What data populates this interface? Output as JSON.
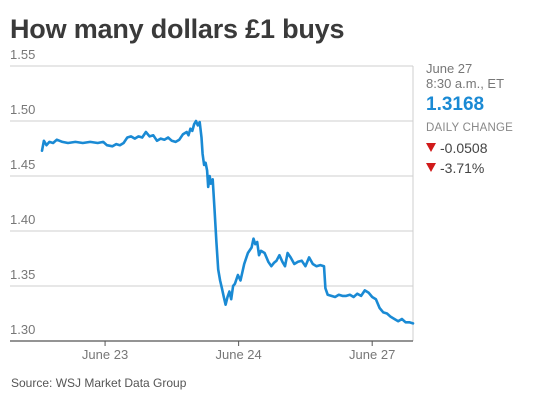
{
  "title": "How many dollars £1 buys",
  "source": "Source: WSJ Market Data Group",
  "panel": {
    "date": "June 27",
    "time": "8:30 a.m., ET",
    "value": "1.3168",
    "label": "DAILY CHANGE",
    "change": "-0.0508",
    "change_pct": "-3.71%"
  },
  "colors": {
    "line": "#1a8ad4",
    "down": "#d01a1a",
    "grid": "#cfcfcf"
  },
  "chart_data": {
    "type": "line",
    "title": "How many dollars £1 buys",
    "xlabel": "",
    "ylabel": "",
    "ylim": [
      1.3,
      1.55
    ],
    "y_ticks": [
      "1.55",
      "1.50",
      "1.45",
      "1.40",
      "1.35",
      "1.30"
    ],
    "x_ticks": [
      {
        "label": "June 23",
        "x": 0.17
      },
      {
        "label": "June 24",
        "x": 0.53
      },
      {
        "label": "June 27",
        "x": 0.89
      }
    ],
    "xlim": [
      0,
      1
    ],
    "grid": true,
    "series": [
      {
        "values": [
          [
            0.0,
            1.473
          ],
          [
            0.005,
            1.482
          ],
          [
            0.012,
            1.478
          ],
          [
            0.02,
            1.481
          ],
          [
            0.03,
            1.48
          ],
          [
            0.04,
            1.483
          ],
          [
            0.055,
            1.481
          ],
          [
            0.07,
            1.48
          ],
          [
            0.09,
            1.481
          ],
          [
            0.11,
            1.48
          ],
          [
            0.13,
            1.481
          ],
          [
            0.15,
            1.48
          ],
          [
            0.165,
            1.481
          ],
          [
            0.175,
            1.478
          ],
          [
            0.19,
            1.477
          ],
          [
            0.2,
            1.479
          ],
          [
            0.21,
            1.478
          ],
          [
            0.22,
            1.48
          ],
          [
            0.23,
            1.485
          ],
          [
            0.24,
            1.486
          ],
          [
            0.25,
            1.484
          ],
          [
            0.26,
            1.486
          ],
          [
            0.27,
            1.485
          ],
          [
            0.28,
            1.49
          ],
          [
            0.29,
            1.486
          ],
          [
            0.3,
            1.487
          ],
          [
            0.31,
            1.482
          ],
          [
            0.32,
            1.484
          ],
          [
            0.33,
            1.483
          ],
          [
            0.34,
            1.485
          ],
          [
            0.35,
            1.482
          ],
          [
            0.36,
            1.481
          ],
          [
            0.37,
            1.483
          ],
          [
            0.38,
            1.488
          ],
          [
            0.39,
            1.49
          ],
          [
            0.395,
            1.487
          ],
          [
            0.4,
            1.493
          ],
          [
            0.405,
            1.491
          ],
          [
            0.41,
            1.497
          ],
          [
            0.415,
            1.5
          ],
          [
            0.42,
            1.496
          ],
          [
            0.425,
            1.499
          ],
          [
            0.43,
            1.485
          ],
          [
            0.433,
            1.47
          ],
          [
            0.437,
            1.46
          ],
          [
            0.441,
            1.462
          ],
          [
            0.445,
            1.455
          ],
          [
            0.448,
            1.44
          ],
          [
            0.452,
            1.45
          ],
          [
            0.455,
            1.443
          ],
          [
            0.46,
            1.447
          ],
          [
            0.465,
            1.42
          ],
          [
            0.47,
            1.39
          ],
          [
            0.475,
            1.365
          ],
          [
            0.48,
            1.355
          ],
          [
            0.485,
            1.348
          ],
          [
            0.49,
            1.34
          ],
          [
            0.495,
            1.333
          ],
          [
            0.5,
            1.34
          ],
          [
            0.505,
            1.345
          ],
          [
            0.51,
            1.338
          ],
          [
            0.515,
            1.35
          ],
          [
            0.52,
            1.352
          ],
          [
            0.528,
            1.36
          ],
          [
            0.535,
            1.355
          ],
          [
            0.545,
            1.37
          ],
          [
            0.555,
            1.38
          ],
          [
            0.565,
            1.385
          ],
          [
            0.57,
            1.393
          ],
          [
            0.575,
            1.388
          ],
          [
            0.58,
            1.39
          ],
          [
            0.585,
            1.378
          ],
          [
            0.59,
            1.382
          ],
          [
            0.6,
            1.38
          ],
          [
            0.61,
            1.372
          ],
          [
            0.618,
            1.368
          ],
          [
            0.625,
            1.371
          ],
          [
            0.632,
            1.373
          ],
          [
            0.64,
            1.378
          ],
          [
            0.648,
            1.372
          ],
          [
            0.655,
            1.368
          ],
          [
            0.662,
            1.38
          ],
          [
            0.67,
            1.376
          ],
          [
            0.68,
            1.37
          ],
          [
            0.69,
            1.372
          ],
          [
            0.7,
            1.373
          ],
          [
            0.71,
            1.368
          ],
          [
            0.72,
            1.376
          ],
          [
            0.73,
            1.37
          ],
          [
            0.74,
            1.368
          ],
          [
            0.75,
            1.369
          ],
          [
            0.76,
            1.368
          ],
          [
            0.764,
            1.348
          ],
          [
            0.77,
            1.342
          ],
          [
            0.78,
            1.341
          ],
          [
            0.79,
            1.34
          ],
          [
            0.8,
            1.342
          ],
          [
            0.81,
            1.341
          ],
          [
            0.82,
            1.341
          ],
          [
            0.83,
            1.342
          ],
          [
            0.84,
            1.34
          ],
          [
            0.85,
            1.343
          ],
          [
            0.86,
            1.341
          ],
          [
            0.87,
            1.346
          ],
          [
            0.88,
            1.344
          ],
          [
            0.89,
            1.34
          ],
          [
            0.9,
            1.338
          ],
          [
            0.91,
            1.33
          ],
          [
            0.92,
            1.326
          ],
          [
            0.93,
            1.325
          ],
          [
            0.94,
            1.322
          ],
          [
            0.95,
            1.32
          ],
          [
            0.96,
            1.318
          ],
          [
            0.97,
            1.32
          ],
          [
            0.98,
            1.317
          ],
          [
            0.99,
            1.317
          ],
          [
            1.0,
            1.316
          ]
        ]
      }
    ]
  }
}
